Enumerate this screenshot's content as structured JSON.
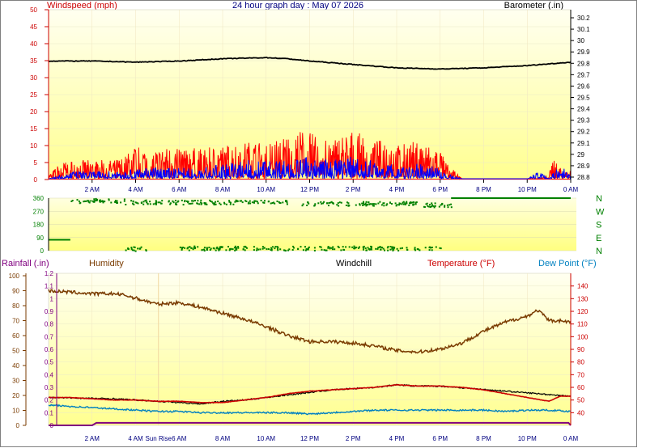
{
  "title": "24 hour graph day : May 07 2026",
  "colors": {
    "wind_gust": "#ff0000",
    "wind_avg": "#0000ff",
    "barometer": "#000000",
    "direction": "#008000",
    "humidity": "#7a3b00",
    "windchill": "#000000",
    "temperature": "#cc0000",
    "dewpoint": "#0080c0",
    "rainfall": "#800080"
  },
  "chart_data": [
    {
      "type": "line",
      "name": "wind-barometer",
      "y_left_label": "Windspeed (mph)",
      "y_right_label": "Barometer (.in)",
      "y_left_ticks": [
        "0",
        "5",
        "10",
        "15",
        "20",
        "25",
        "30",
        "35",
        "40",
        "45",
        "50"
      ],
      "y_left_range": [
        0,
        50
      ],
      "y_right_ticks": [
        "28.8",
        "28.9",
        "29",
        "29.1",
        "29.2",
        "29.3",
        "29.4",
        "29.5",
        "29.6",
        "29.7",
        "29.8",
        "29.9",
        "30",
        "30.1",
        "30.2"
      ],
      "y_right_range": [
        28.8,
        30.2
      ],
      "x_ticks": [
        "2 AM",
        "4 AM",
        "6 AM",
        "8 AM",
        "10 AM",
        "12 PM",
        "2 PM",
        "4 PM",
        "6 PM",
        "8 PM",
        "10 PM",
        "0 AM"
      ],
      "x_range_hours": [
        0,
        24
      ],
      "barometer": {
        "x": [
          0,
          2,
          4,
          6,
          8,
          10,
          11,
          12,
          14,
          16,
          18,
          20,
          22,
          24
        ],
        "y": [
          29.82,
          29.82,
          29.81,
          29.82,
          29.84,
          29.85,
          29.84,
          29.82,
          29.79,
          29.76,
          29.75,
          29.76,
          29.78,
          29.81
        ]
      },
      "wind_gust_envelope": {
        "x": [
          0,
          0.5,
          1,
          2,
          3,
          3.5,
          4,
          5,
          6,
          7,
          8,
          9,
          10,
          11,
          11.5,
          12,
          12.5,
          13,
          14,
          15,
          15.5,
          16,
          16.5,
          17,
          17.5,
          18,
          18.2,
          18.5,
          19,
          20,
          21,
          21.5,
          22,
          22.5,
          23,
          23.2,
          23.5,
          24
        ],
        "y": [
          1,
          4,
          5,
          5,
          5,
          6,
          9,
          8,
          9,
          8,
          9,
          10,
          10,
          12,
          13,
          13,
          10,
          11,
          13,
          10,
          11,
          9,
          10,
          10,
          9,
          8,
          5,
          3,
          0,
          0,
          0,
          0,
          0,
          0,
          1,
          6,
          4,
          2
        ]
      },
      "wind_avg_envelope": {
        "x": [
          0,
          1,
          2,
          3,
          4,
          5,
          6,
          7,
          8,
          9,
          10,
          11,
          12,
          13,
          14,
          15,
          16,
          17,
          18,
          18.5,
          19,
          22,
          22.5,
          23,
          23.5,
          24
        ],
        "y": [
          0,
          2,
          2,
          2,
          3,
          3,
          3,
          3,
          4,
          5,
          5,
          5,
          6,
          5,
          6,
          5,
          4,
          4,
          3,
          1,
          0,
          0,
          2,
          0,
          4,
          1
        ]
      }
    },
    {
      "type": "scatter",
      "name": "wind-direction",
      "y_ticks": [
        "0",
        "90",
        "180",
        "270",
        "360"
      ],
      "y_range": [
        0,
        360
      ],
      "compass_labels": [
        "N",
        "W",
        "S",
        "E",
        "N"
      ],
      "clusters": [
        {
          "from": 0,
          "to": 1,
          "deg": 75
        },
        {
          "from": 1,
          "to": 3.5,
          "deg": 340
        },
        {
          "from": 3.5,
          "to": 11,
          "deg": 330
        },
        {
          "from": 11.5,
          "to": 17,
          "deg": 320
        },
        {
          "from": 17,
          "to": 18.5,
          "deg": 310
        },
        {
          "from": 18.5,
          "to": 24,
          "deg": 360
        },
        {
          "from": 3.5,
          "to": 4.5,
          "deg": 10
        },
        {
          "from": 6,
          "to": 18,
          "deg": 15
        }
      ]
    },
    {
      "type": "line",
      "name": "temperature-humidity",
      "labels": {
        "rainfall": "Rainfall (.in)",
        "humidity": "Humidity",
        "windchill": "Windchill",
        "temperature": "Temperature (°F)",
        "dewpoint": "Dew Point (°F)"
      },
      "y_rain_ticks": [
        "0",
        "0.1",
        "0.2",
        "0.3",
        "0.4",
        "0.5",
        "0.6",
        "0.7",
        "0.8",
        "0.9",
        "1",
        "1.1",
        "1.2"
      ],
      "y_rain_range": [
        0,
        1.2
      ],
      "y_hum_ticks": [
        "0",
        "10",
        "20",
        "30",
        "40",
        "50",
        "60",
        "70",
        "80",
        "90",
        "100"
      ],
      "y_hum_range": [
        0,
        100
      ],
      "y_temp_ticks": [
        "40",
        "50",
        "60",
        "70",
        "80",
        "90",
        "100",
        "110",
        "120",
        "130",
        "140"
      ],
      "y_temp_range": [
        30,
        150
      ],
      "x_ticks": [
        "2 AM",
        "4 AM",
        "Sun Rise",
        "6 AM",
        "8 AM",
        "10 AM",
        "12 PM",
        "2 PM",
        "4 PM",
        "6 PM",
        "8 PM",
        "10 PM",
        "0 AM"
      ],
      "humidity": {
        "x": [
          0,
          1,
          2,
          3,
          3.5,
          4,
          5,
          6,
          7,
          8,
          9,
          10,
          11,
          12,
          13,
          14,
          15,
          16,
          17,
          18,
          19,
          20,
          21,
          22,
          22.5,
          23,
          23.5,
          24
        ],
        "y": [
          90,
          89,
          88,
          88,
          87,
          85,
          81,
          82,
          79,
          75,
          71,
          66,
          60,
          56,
          56,
          55,
          53,
          50,
          49,
          51,
          55,
          63,
          69,
          73,
          77,
          70,
          70,
          69
        ]
      },
      "temperature": {
        "x": [
          0,
          1,
          2,
          3,
          4,
          5,
          6,
          7,
          8,
          9,
          10,
          11,
          12,
          13,
          14,
          15,
          16,
          17,
          18,
          19,
          20,
          21,
          22,
          23,
          23.5,
          24
        ],
        "y": [
          52,
          52,
          51,
          50,
          50,
          49,
          49,
          48,
          48,
          50,
          52,
          55,
          57,
          58,
          59,
          60,
          62,
          61,
          61,
          60,
          58,
          55,
          52,
          49,
          53,
          53
        ]
      },
      "windchill": {
        "x": [
          0,
          3,
          4,
          5,
          6,
          7,
          8,
          9,
          10,
          11,
          12,
          13,
          14,
          15,
          16,
          17,
          18,
          24
        ],
        "y": [
          52,
          51,
          50,
          49,
          48,
          47,
          49,
          50,
          52,
          54,
          56,
          58,
          59,
          60,
          62,
          61,
          61,
          53
        ]
      },
      "dewpoint": {
        "x": [
          0,
          1,
          2,
          3,
          4,
          5,
          6,
          7,
          8,
          9,
          10,
          11,
          12,
          13,
          14,
          15,
          16,
          17,
          18,
          19,
          20,
          21,
          22,
          23,
          24
        ],
        "y": [
          46,
          45,
          44,
          43,
          42,
          41,
          41,
          40,
          40,
          40,
          40,
          40,
          39,
          40,
          41,
          42,
          42,
          42,
          42,
          42,
          42,
          41,
          42,
          42,
          41
        ]
      },
      "rainfall": {
        "x": [
          0,
          1,
          2,
          2.2,
          10,
          23.9,
          24
        ],
        "y": [
          0,
          0,
          0,
          0.02,
          0.02,
          0.02,
          0
        ]
      }
    }
  ]
}
